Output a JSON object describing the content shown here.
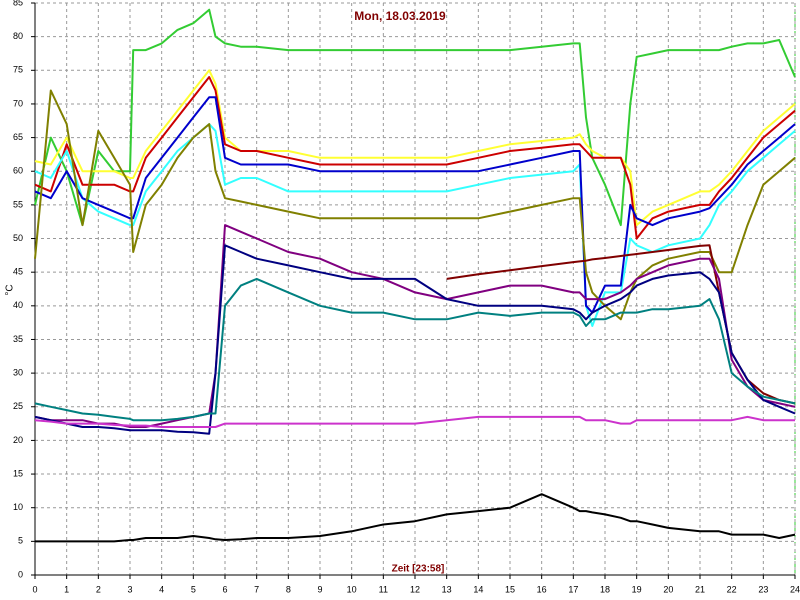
{
  "chart_data": {
    "type": "line",
    "title": "Mon, 18.03.2019",
    "x_label": "Zeit [23:58]",
    "y_label": "°C",
    "x": [
      0,
      0.5,
      1,
      1.5,
      2,
      2.5,
      3,
      3.1,
      3.5,
      4,
      4.5,
      5,
      5.5,
      5.7,
      6,
      6.5,
      7,
      8,
      9,
      10,
      11,
      12,
      13,
      14,
      15,
      16,
      17,
      17.2,
      17.4,
      17.6,
      18,
      18.5,
      18.8,
      19,
      19.5,
      20,
      21,
      21.3,
      21.6,
      22,
      22.5,
      23,
      23.5,
      24
    ],
    "xlim": [
      0,
      24
    ],
    "xticks": [
      0,
      1,
      2,
      3,
      4,
      5,
      6,
      7,
      8,
      9,
      10,
      11,
      12,
      13,
      14,
      15,
      16,
      17,
      18,
      19,
      20,
      21,
      22,
      23,
      24
    ],
    "ylim": [
      0,
      85
    ],
    "yticks": [
      0,
      5,
      10,
      15,
      20,
      25,
      30,
      35,
      40,
      45,
      50,
      55,
      60,
      65,
      70,
      75,
      80,
      85
    ],
    "grid": true,
    "series": [
      {
        "color": "#33cc33",
        "values": [
          55,
          65,
          60,
          52,
          63,
          60,
          60,
          78,
          78,
          79,
          81,
          82,
          84,
          80,
          79,
          78.5,
          78.5,
          78,
          78,
          78,
          78,
          78,
          78,
          78,
          78,
          78.5,
          79,
          79,
          68,
          62,
          58,
          52,
          70,
          77,
          77.5,
          78,
          78,
          78,
          78,
          78.5,
          79,
          79,
          79.5,
          74
        ]
      },
      {
        "color": "#ffff33",
        "values": [
          61.5,
          61,
          65,
          60,
          60,
          60,
          59,
          59,
          63,
          66,
          69,
          72,
          75,
          73,
          65,
          63,
          63,
          63,
          62,
          62,
          62,
          62,
          62,
          63,
          64,
          64.5,
          65,
          65.5,
          64,
          63,
          62,
          62,
          60,
          52,
          54,
          55,
          57,
          57,
          58,
          60,
          63,
          66,
          68,
          70
        ]
      },
      {
        "color": "#cc0000",
        "values": [
          58,
          57,
          64,
          58,
          58,
          58,
          57,
          57,
          62,
          65,
          68,
          71,
          74,
          72,
          64,
          63,
          63,
          62,
          61,
          61,
          61,
          61,
          61,
          62,
          63,
          63.5,
          64,
          64,
          63,
          62,
          62,
          62,
          58,
          50,
          53,
          54,
          55,
          55,
          57,
          59,
          62,
          65,
          67,
          69
        ]
      },
      {
        "color": "#33ffff",
        "values": [
          60,
          59,
          63,
          56,
          54,
          53,
          52,
          52,
          57,
          60,
          63,
          65,
          67,
          66,
          58,
          59,
          59,
          57,
          57,
          57,
          57,
          57,
          57,
          58,
          59,
          59.5,
          60,
          61,
          40,
          37,
          42,
          42,
          50,
          49,
          48,
          49,
          50,
          52,
          55,
          57,
          60,
          62,
          64,
          66
        ]
      },
      {
        "color": "#0000cc",
        "values": [
          57,
          56,
          60,
          56,
          55,
          54,
          53,
          53,
          59,
          62,
          65,
          68,
          71,
          71,
          62,
          61,
          61,
          61,
          60,
          60,
          60,
          60,
          60,
          60,
          61,
          62,
          63,
          63,
          40,
          39,
          43,
          43,
          55,
          53,
          52,
          53,
          54,
          54.5,
          56,
          58,
          61,
          63,
          65,
          67
        ]
      },
      {
        "color": "#808000",
        "values": [
          47,
          72,
          67,
          52,
          66,
          62,
          58,
          48,
          55,
          58,
          62,
          65,
          67,
          60,
          56,
          55.5,
          55,
          54,
          53,
          53,
          53,
          53,
          53,
          53,
          54,
          55,
          56,
          56,
          45,
          42,
          40,
          38,
          42,
          44,
          46,
          47,
          48,
          48,
          45,
          45,
          52,
          58,
          60,
          62
        ]
      },
      {
        "color": "#800000",
        "values": [
          null,
          null,
          null,
          null,
          null,
          null,
          null,
          null,
          null,
          null,
          null,
          null,
          null,
          null,
          null,
          null,
          null,
          null,
          null,
          null,
          null,
          null,
          44,
          44.7,
          45.3,
          45.9,
          46.5,
          46.6,
          46.7,
          46.9,
          47.1,
          47.4,
          47.6,
          47.7,
          48,
          48.3,
          48.9,
          49,
          42,
          33,
          29,
          27,
          26,
          25.5
        ]
      },
      {
        "color": "#800080",
        "values": [
          23.5,
          23,
          23,
          23,
          22.5,
          22.5,
          22,
          22,
          22,
          22.5,
          23,
          23.5,
          24,
          30,
          52,
          51,
          50,
          48,
          47,
          45,
          44,
          42,
          41,
          42,
          43,
          43,
          42,
          42,
          41,
          41,
          41,
          42,
          43,
          44,
          45,
          46,
          47,
          47,
          44,
          32,
          28,
          26,
          25.5,
          25
        ]
      },
      {
        "color": "#000080",
        "values": [
          23.5,
          23,
          22.5,
          22,
          22,
          21.8,
          21.5,
          21.5,
          21.5,
          21.5,
          21.3,
          21.2,
          21,
          30,
          49,
          48,
          47,
          46,
          45,
          44,
          44,
          44,
          41,
          40,
          40,
          40,
          39.5,
          39,
          38,
          39,
          40,
          41,
          42,
          43,
          44,
          44.5,
          45,
          44,
          42,
          33,
          29,
          26,
          25,
          24
        ]
      },
      {
        "color": "#008080",
        "values": [
          25.5,
          25,
          24.5,
          24,
          23.8,
          23.5,
          23.2,
          23,
          23,
          23,
          23.2,
          23.5,
          24,
          24,
          40,
          43,
          44,
          42,
          40,
          39,
          39,
          38,
          38,
          39,
          38.5,
          39,
          39,
          38.5,
          37,
          38,
          38,
          39,
          39,
          39,
          39.5,
          39.5,
          40,
          41,
          38,
          30,
          28,
          26.5,
          26,
          25.5
        ]
      },
      {
        "color": "#cc33cc",
        "values": [
          23,
          22.8,
          22.5,
          22.5,
          22.5,
          22.3,
          22.2,
          22.2,
          22.2,
          22,
          22,
          22,
          22,
          22,
          22.5,
          22.5,
          22.5,
          22.5,
          22.5,
          22.5,
          22.5,
          22.5,
          23,
          23.5,
          23.5,
          23.5,
          23.5,
          23.5,
          23,
          23,
          23,
          22.5,
          22.5,
          23,
          23,
          23,
          23,
          23,
          23,
          23,
          23.5,
          23,
          23,
          23
        ]
      },
      {
        "color": "#000000",
        "values": [
          5,
          5,
          5,
          5,
          5,
          5,
          5.2,
          5.2,
          5.5,
          5.5,
          5.5,
          5.8,
          5.5,
          5.3,
          5.2,
          5.3,
          5.5,
          5.5,
          5.8,
          6.5,
          7.5,
          8,
          9,
          9.5,
          10,
          12,
          10,
          9.5,
          9.5,
          9.3,
          9,
          8.5,
          8,
          8,
          7.5,
          7,
          6.5,
          6.5,
          6.5,
          6,
          6,
          6,
          5.5,
          6
        ]
      }
    ]
  }
}
